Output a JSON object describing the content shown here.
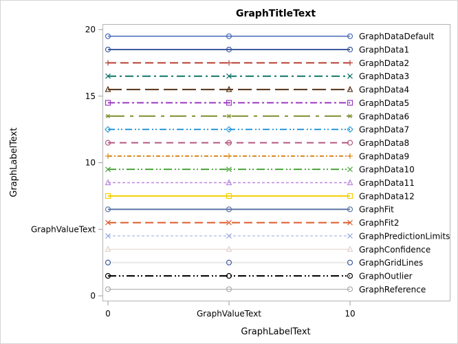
{
  "chart_data": {
    "type": "line",
    "title": "GraphTitleText",
    "xlabel": "GraphLabelText",
    "ylabel": "GraphLabelText",
    "xlim": [
      0,
      17
    ],
    "ylim": [
      0,
      20
    ],
    "x_ticks": [
      {
        "value": 0,
        "label": "0"
      },
      {
        "value": 5,
        "label": "GraphValueText"
      },
      {
        "value": 10,
        "label": "10"
      }
    ],
    "y_ticks": [
      {
        "value": 0,
        "label": "0"
      },
      {
        "value": 5,
        "label": "GraphValueText"
      },
      {
        "value": 10,
        "label": "10"
      },
      {
        "value": 15,
        "label": "15"
      },
      {
        "value": 20,
        "label": "20"
      }
    ],
    "grid": false,
    "legend_position": "inline-right",
    "x": [
      0,
      5,
      10
    ],
    "series": [
      {
        "name": "GraphDataDefault",
        "values": [
          19.5,
          19.5,
          19.5
        ],
        "color": "#4468b8",
        "dash": "",
        "width": 1.5,
        "marker": "circle"
      },
      {
        "name": "GraphData1",
        "values": [
          18.5,
          18.5,
          18.5
        ],
        "color": "#3d5aa0",
        "dash": "",
        "width": 2,
        "marker": "circle"
      },
      {
        "name": "GraphData2",
        "values": [
          17.5,
          17.5,
          17.5
        ],
        "color": "#b93d32",
        "dash": "12,6",
        "width": 2,
        "marker": "plus"
      },
      {
        "name": "GraphData3",
        "values": [
          16.5,
          16.5,
          16.5
        ],
        "color": "#0f7567",
        "dash": "12,5,3,5",
        "width": 2,
        "marker": "x"
      },
      {
        "name": "GraphData4",
        "values": [
          15.5,
          15.5,
          15.5
        ],
        "color": "#553015",
        "dash": "20,7",
        "width": 2,
        "marker": "triangle"
      },
      {
        "name": "GraphData5",
        "values": [
          14.5,
          14.5,
          14.5
        ],
        "color": "#9c38c2",
        "dash": "10,4,3,4",
        "width": 2,
        "marker": "square"
      },
      {
        "name": "GraphData6",
        "values": [
          13.5,
          13.5,
          13.5
        ],
        "color": "#7e8e2c",
        "dash": "24,8,5,8",
        "width": 2,
        "marker": "star"
      },
      {
        "name": "GraphData7",
        "values": [
          12.5,
          12.5,
          12.5
        ],
        "color": "#2a98d9",
        "dash": "10,4,2,3,2,4",
        "width": 2,
        "marker": "diamond"
      },
      {
        "name": "GraphData8",
        "values": [
          11.5,
          11.5,
          11.5
        ],
        "color": "#b45682",
        "dash": "10,7",
        "width": 2,
        "marker": "circle"
      },
      {
        "name": "GraphData9",
        "values": [
          10.5,
          10.5,
          10.5
        ],
        "color": "#d9851c",
        "dash": "6,3,2,3",
        "width": 2,
        "marker": "plus"
      },
      {
        "name": "GraphData10",
        "values": [
          9.5,
          9.5,
          9.5
        ],
        "color": "#49a33a",
        "dash": "12,4,2,3,2,4",
        "width": 2,
        "marker": "x"
      },
      {
        "name": "GraphData11",
        "values": [
          8.5,
          8.5,
          8.5
        ],
        "color": "#bb86e0",
        "dash": "4,3",
        "width": 1.5,
        "marker": "triangle"
      },
      {
        "name": "GraphData12",
        "values": [
          7.5,
          7.5,
          7.5
        ],
        "color": "#f2cf00",
        "dash": "",
        "width": 2,
        "marker": "square"
      },
      {
        "name": "GraphFit",
        "values": [
          6.5,
          6.5,
          6.5
        ],
        "color": "#5b75a6",
        "dash": "",
        "width": 2,
        "marker": "circle"
      },
      {
        "name": "GraphFit2",
        "values": [
          5.5,
          5.5,
          5.5
        ],
        "color": "#df5a2a",
        "dash": "12,6",
        "width": 2,
        "marker": "x"
      },
      {
        "name": "GraphPredictionLimits",
        "values": [
          4.5,
          4.5,
          4.5
        ],
        "color": "#99a8de",
        "dash": "4,3",
        "width": 1,
        "marker": "x"
      },
      {
        "name": "GraphConfidence",
        "values": [
          3.5,
          3.5,
          3.5
        ],
        "color": "#e3d1cb",
        "dash": "",
        "width": 1,
        "marker": "triangle"
      },
      {
        "name": "GraphGridLines",
        "values": [
          2.5,
          2.5,
          2.5
        ],
        "color": "#e8e8e8",
        "dash": "",
        "width": 2,
        "marker": "circle",
        "marker_color": "#3d5aa0"
      },
      {
        "name": "GraphOutlier",
        "values": [
          1.5,
          1.5,
          1.5
        ],
        "color": "#000000",
        "dash": "12,4,2,3,2,4",
        "width": 2,
        "marker": "circle"
      },
      {
        "name": "GraphReference",
        "values": [
          0.5,
          0.5,
          0.5
        ],
        "color": "#a8a8a8",
        "dash": "",
        "width": 1,
        "marker": "circle"
      }
    ]
  },
  "colors": {
    "frame": "#b4b4b4",
    "outer_border": "#d4d4d4",
    "tick": "#999999",
    "text": "#000000"
  }
}
